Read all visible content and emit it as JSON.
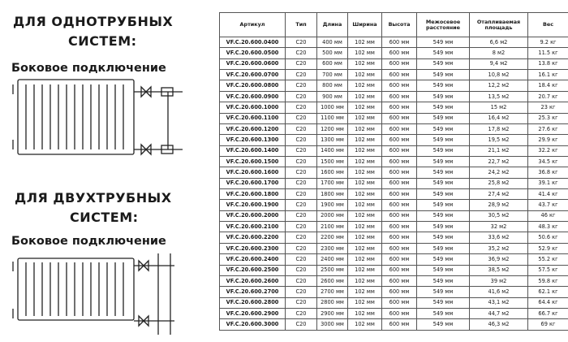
{
  "left": {
    "one_pipe": {
      "title": "ДЛЯ ОДНОТРУБНЫХ",
      "subtitle": "СИСТЕМ:",
      "connection": "Боковое подключение"
    },
    "two_pipe": {
      "title": "ДЛЯ ДВУХТРУБНЫХ",
      "subtitle": "СИСТЕМ:",
      "connection": "Боковое подключение"
    }
  },
  "table": {
    "headers": [
      "Артикул",
      "Тип",
      "Длина",
      "Ширина",
      "Высота",
      "Межосевое расстояние",
      "Отапливаемая площадь",
      "Вес"
    ],
    "rows": [
      [
        "VF.C.20.600.0400",
        "C20",
        "400 мм",
        "102 мм",
        "600 мм",
        "549 мм",
        "6,6 м2",
        "9.2 кг"
      ],
      [
        "VF.C.20.600.0500",
        "C20",
        "500 мм",
        "102 мм",
        "600 мм",
        "549 мм",
        "8 м2",
        "11.5 кг"
      ],
      [
        "VF.C.20.600.0600",
        "C20",
        "600 мм",
        "102 мм",
        "600 мм",
        "549 мм",
        "9,4 м2",
        "13.8 кг"
      ],
      [
        "VF.C.20.600.0700",
        "C20",
        "700 мм",
        "102 мм",
        "600 мм",
        "549 мм",
        "10,8 м2",
        "16.1 кг"
      ],
      [
        "VF.C.20.600.0800",
        "C20",
        "800 мм",
        "102 мм",
        "600 мм",
        "549 мм",
        "12,2 м2",
        "18.4 кг"
      ],
      [
        "VF.C.20.600.0900",
        "C20",
        "900 мм",
        "102 мм",
        "600 мм",
        "549 мм",
        "13,5 м2",
        "20.7 кг"
      ],
      [
        "VF.C.20.600.1000",
        "C20",
        "1000 мм",
        "102 мм",
        "600 мм",
        "549 мм",
        "15 м2",
        "23 кг"
      ],
      [
        "VF.C.20.600.1100",
        "C20",
        "1100 мм",
        "102 мм",
        "600 мм",
        "549 мм",
        "16,4 м2",
        "25.3 кг"
      ],
      [
        "VF.C.20.600.1200",
        "C20",
        "1200 мм",
        "102 мм",
        "600 мм",
        "549 мм",
        "17,8 м2",
        "27.6 кг"
      ],
      [
        "VF.C.20.600.1300",
        "C20",
        "1300 мм",
        "102 мм",
        "600 мм",
        "549 мм",
        "19,5 м2",
        "29.9 кг"
      ],
      [
        "VF.C.20.600.1400",
        "C20",
        "1400 мм",
        "102 мм",
        "600 мм",
        "549 мм",
        "21,1 м2",
        "32.2 кг"
      ],
      [
        "VF.C.20.600.1500",
        "C20",
        "1500 мм",
        "102 мм",
        "600 мм",
        "549 мм",
        "22,7 м2",
        "34.5 кг"
      ],
      [
        "VF.C.20.600.1600",
        "C20",
        "1600 мм",
        "102 мм",
        "600 мм",
        "549 мм",
        "24,2 м2",
        "36.8 кг"
      ],
      [
        "VF.C.20.600.1700",
        "C20",
        "1700 мм",
        "102 мм",
        "600 мм",
        "549 мм",
        "25,8 м2",
        "39.1 кг"
      ],
      [
        "VF.C.20.600.1800",
        "C20",
        "1800 мм",
        "102 мм",
        "600 мм",
        "549 мм",
        "27,4 м2",
        "41.4 кг"
      ],
      [
        "VF.C.20.600.1900",
        "C20",
        "1900 мм",
        "102 мм",
        "600 мм",
        "549 мм",
        "28,9 м2",
        "43.7 кг"
      ],
      [
        "VF.C.20.600.2000",
        "C20",
        "2000 мм",
        "102 мм",
        "600 мм",
        "549 мм",
        "30,5 м2",
        "46 кг"
      ],
      [
        "VF.C.20.600.2100",
        "C20",
        "2100 мм",
        "102 мм",
        "600 мм",
        "549 мм",
        "32 м2",
        "48.3 кг"
      ],
      [
        "VF.C.20.600.2200",
        "C20",
        "2200 мм",
        "102 мм",
        "600 мм",
        "549 мм",
        "33,6 м2",
        "50.6 кг"
      ],
      [
        "VF.C.20.600.2300",
        "C20",
        "2300 мм",
        "102 мм",
        "600 мм",
        "549 мм",
        "35,2 м2",
        "52.9 кг"
      ],
      [
        "VF.C.20.600.2400",
        "C20",
        "2400 мм",
        "102 мм",
        "600 мм",
        "549 мм",
        "36,9 м2",
        "55.2 кг"
      ],
      [
        "VF.C.20.600.2500",
        "C20",
        "2500 мм",
        "102 мм",
        "600 мм",
        "549 мм",
        "38,5 м2",
        "57.5 кг"
      ],
      [
        "VF.C.20.600.2600",
        "C20",
        "2600 мм",
        "102 мм",
        "600 мм",
        "549 мм",
        "39 м2",
        "59.8 кг"
      ],
      [
        "VF.C.20.600.2700",
        "C20",
        "2700 мм",
        "102 мм",
        "600 мм",
        "549 мм",
        "41,6 м2",
        "62.1 кг"
      ],
      [
        "VF.C.20.600.2800",
        "C20",
        "2800 мм",
        "102 мм",
        "600 мм",
        "549 мм",
        "43,1 м2",
        "64.4 кг"
      ],
      [
        "VF.C.20.600.2900",
        "C20",
        "2900 мм",
        "102 мм",
        "600 мм",
        "549 мм",
        "44,7 м2",
        "66.7 кг"
      ],
      [
        "VF.C.20.600.3000",
        "C20",
        "3000 мм",
        "102 мм",
        "600 мм",
        "549 мм",
        "46,3 м2",
        "69 кг"
      ]
    ]
  }
}
